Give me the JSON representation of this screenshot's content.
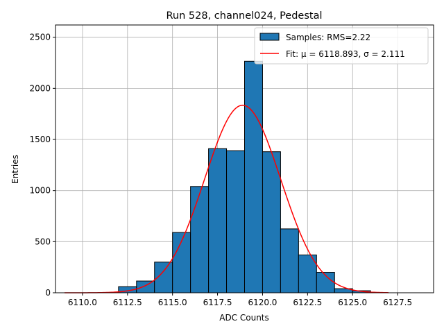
{
  "chart_data": {
    "type": "bar",
    "title": "Run 528, channel024, Pedestal",
    "xlabel": "ADC Counts",
    "ylabel": "Entries",
    "xlim": [
      6108.5,
      6129.5
    ],
    "ylim": [
      0,
      2620
    ],
    "xticks": [
      "6110.0",
      "6112.5",
      "6115.0",
      "6117.5",
      "6120.0",
      "6122.5",
      "6125.0",
      "6127.5"
    ],
    "xtick_values": [
      6110.0,
      6112.5,
      6115.0,
      6117.5,
      6120.0,
      6122.5,
      6125.0,
      6127.5
    ],
    "yticks": [
      "0",
      "500",
      "1000",
      "1500",
      "2000",
      "2500"
    ],
    "ytick_values": [
      0,
      500,
      1000,
      1500,
      2000,
      2500
    ],
    "grid": true,
    "legend_position": "top-right",
    "bin_edges": [
      6112,
      6113,
      6114,
      6115,
      6116,
      6117,
      6118,
      6119,
      6120,
      6121,
      6122,
      6123,
      6124,
      6125,
      6126
    ],
    "counts": [
      60,
      115,
      300,
      590,
      1040,
      1410,
      1390,
      2265,
      1380,
      625,
      370,
      200,
      40,
      20
    ],
    "series": [
      {
        "name": "Samples: RMS=2.22",
        "kind": "histogram",
        "color": "#1f77b4",
        "edgecolor": "#000000"
      },
      {
        "name": "Fit: μ = 6118.893, σ = 2.111",
        "kind": "gaussian-fit",
        "color": "#ff0000",
        "mu": 6118.893,
        "sigma": 2.111,
        "amplitude": 1835,
        "x_range": [
          6109,
          6127
        ]
      }
    ]
  }
}
